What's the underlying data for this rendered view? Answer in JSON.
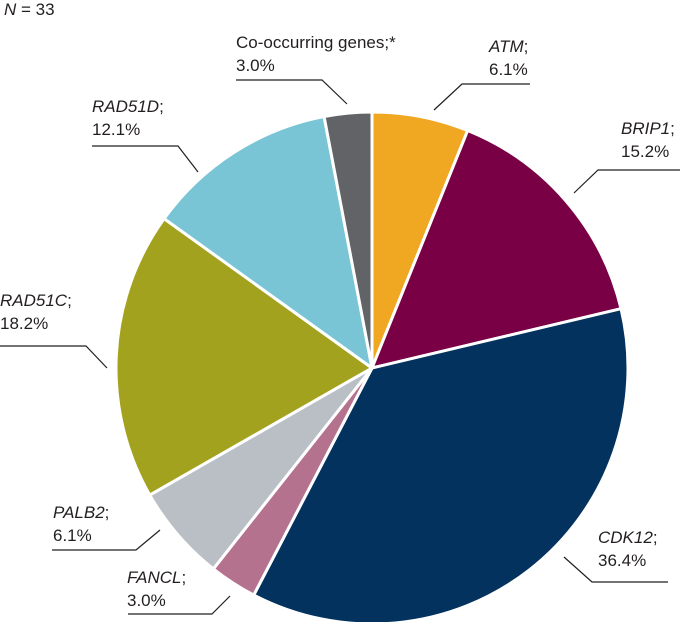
{
  "sample_size": {
    "symbol": "N",
    "equals": " = ",
    "value": "33"
  },
  "chart_data": {
    "type": "pie",
    "title": "",
    "slices": [
      {
        "gene": "ATM",
        "pct_label": "6.1%",
        "value": 6.1,
        "color": "#f0a823"
      },
      {
        "gene": "BRIP1",
        "pct_label": "15.2%",
        "value": 15.2,
        "color": "#7a0046"
      },
      {
        "gene": "CDK12",
        "pct_label": "36.4%",
        "value": 36.4,
        "color": "#04325e"
      },
      {
        "gene": "FANCL",
        "pct_label": "3.0%",
        "value": 3.0,
        "color": "#b5728e"
      },
      {
        "gene": "PALB2",
        "pct_label": "6.1%",
        "value": 6.1,
        "color": "#b9bfc4"
      },
      {
        "gene": "RAD51C",
        "pct_label": "18.2%",
        "value": 18.2,
        "color": "#a3a21e"
      },
      {
        "gene": "RAD51D",
        "pct_label": "12.1%",
        "value": 12.1,
        "color": "#79c5d6"
      },
      {
        "gene": "Co-occurring genes;*",
        "pct_label": "3.0%",
        "value": 3.0,
        "color": "#626366"
      }
    ],
    "label_separator": ";"
  }
}
